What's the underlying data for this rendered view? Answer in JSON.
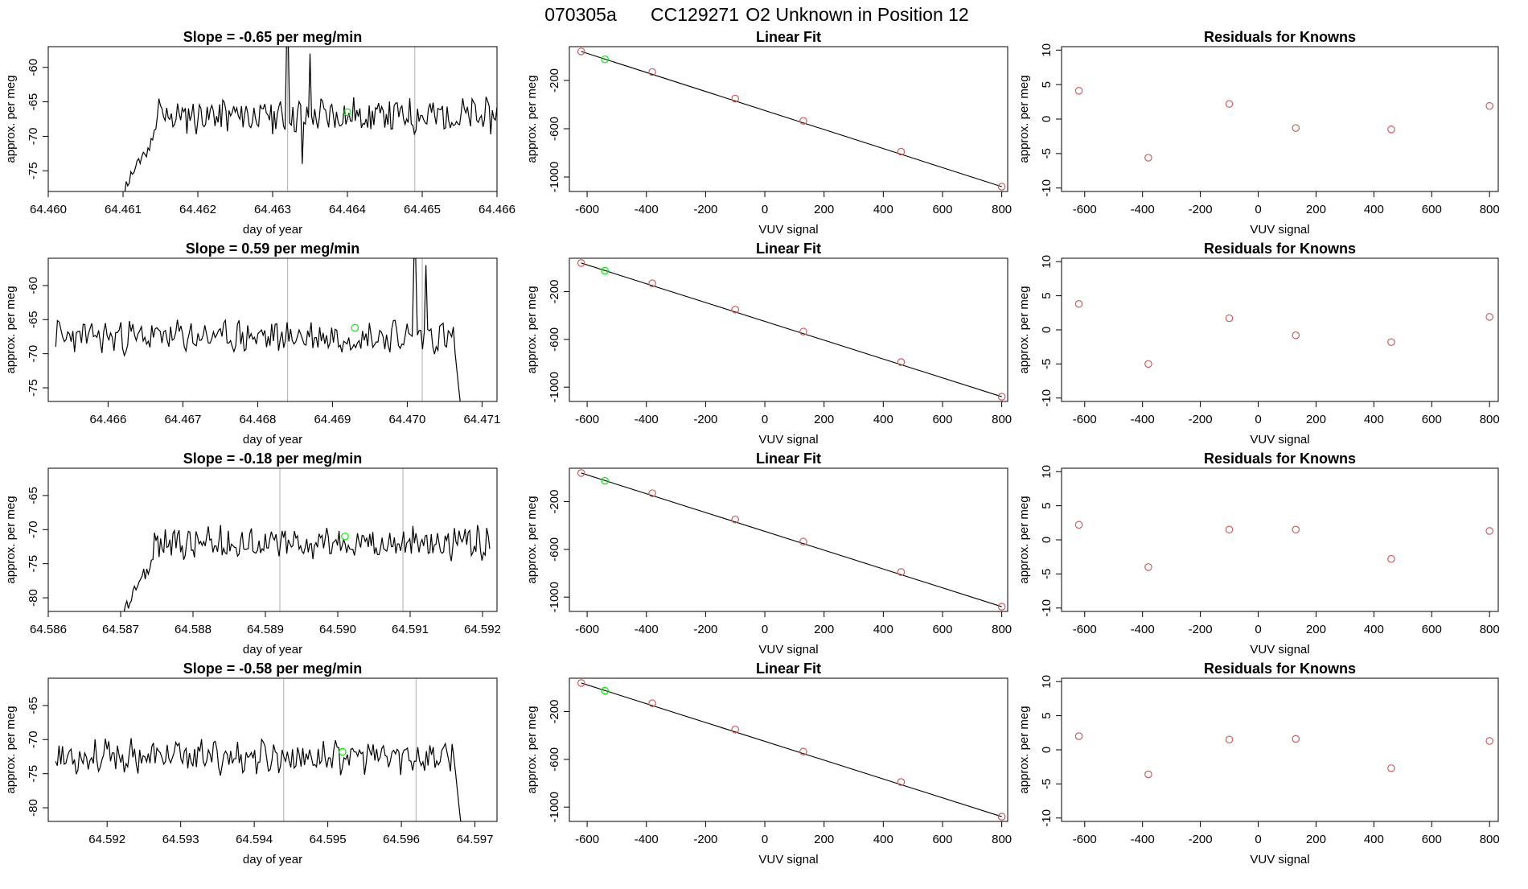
{
  "figure": {
    "title_parts": [
      "070305a",
      "CC129271",
      "O2 Unknown in Position  12"
    ],
    "colors": {
      "line": "#000000",
      "known": "#cd5c5c",
      "unknown": "#00ee00",
      "vline": "#bbbbbb"
    }
  },
  "chart_data": [
    {
      "type": "line",
      "row": 1,
      "title": "Slope =  -0.65  per meg/min",
      "xlabel": "day of year",
      "ylabel": "approx. per meg",
      "xlim": [
        64.46,
        64.466
      ],
      "ylim": [
        -78,
        -57
      ],
      "xticks": [
        "64.460",
        "64.461",
        "64.462",
        "64.463",
        "64.464",
        "64.465",
        "64.466"
      ],
      "yticks": [
        -75,
        -70,
        -65,
        -60
      ],
      "series": {
        "x_start": 64.461,
        "x_end": 64.466,
        "y_base": -67,
        "noise": 2.2,
        "ramp": true,
        "seed": 11,
        "spikes": [
          {
            "x": 64.4632,
            "y": -56
          },
          {
            "x": 64.4635,
            "y": -58
          },
          {
            "x": 64.4634,
            "y": -74
          }
        ]
      },
      "vlines": [
        64.4632,
        64.4649
      ],
      "unknown_point": {
        "x": 64.464,
        "y": -66.5
      }
    },
    {
      "type": "scatter",
      "row": 1,
      "title": "Linear Fit",
      "xlabel": "VUV signal",
      "ylabel": "approx. per meg",
      "xlim": [
        -660,
        820
      ],
      "ylim": [
        -1120,
        80
      ],
      "xticks": [
        -600,
        -400,
        -200,
        0,
        200,
        400,
        600,
        800
      ],
      "yticks": [
        -200,
        -600,
        -1000
      ],
      "fit": [
        [
          -620,
          40
        ],
        [
          800,
          -1080
        ]
      ],
      "known": [
        {
          "x": -620,
          "y": 40
        },
        {
          "x": -380,
          "y": -130
        },
        {
          "x": -100,
          "y": -350
        },
        {
          "x": 130,
          "y": -535
        },
        {
          "x": 460,
          "y": -790
        },
        {
          "x": 800,
          "y": -1080
        }
      ],
      "unknown": {
        "x": -540,
        "y": -25
      }
    },
    {
      "type": "scatter",
      "row": 1,
      "title": "Residuals for Knowns",
      "xlabel": "VUV signal",
      "ylabel": "approx. per meg",
      "xlim": [
        -680,
        830
      ],
      "ylim": [
        -10.5,
        10.5
      ],
      "xticks": [
        -600,
        -400,
        -200,
        0,
        200,
        400,
        600,
        800
      ],
      "yticks": [
        -10,
        -5,
        0,
        5,
        10
      ],
      "known": [
        {
          "x": -620,
          "y": 4.1
        },
        {
          "x": -380,
          "y": -5.6
        },
        {
          "x": -100,
          "y": 2.2
        },
        {
          "x": 130,
          "y": -1.3
        },
        {
          "x": 460,
          "y": -1.5
        },
        {
          "x": 800,
          "y": 1.9
        }
      ]
    },
    {
      "type": "line",
      "row": 2,
      "title": "Slope =  0.59  per meg/min",
      "xlabel": "day of year",
      "ylabel": "approx. per meg",
      "xlim": [
        64.4652,
        64.4712
      ],
      "ylim": [
        -77,
        -56
      ],
      "xticks": [
        "64.466",
        "64.467",
        "64.468",
        "64.469",
        "64.470",
        "64.471"
      ],
      "yticks": [
        -75,
        -70,
        -65,
        -60
      ],
      "series": {
        "x_start": 64.4653,
        "x_end": 64.4708,
        "y_base": -67.5,
        "noise": 2.0,
        "ramp": false,
        "drop": true,
        "seed": 23,
        "spikes": [
          {
            "x": 64.4701,
            "y": -56
          },
          {
            "x": 64.47025,
            "y": -57
          }
        ]
      },
      "vlines": [
        64.4684,
        64.4702
      ],
      "unknown_point": {
        "x": 64.4693,
        "y": -66.2
      }
    },
    {
      "type": "scatter",
      "row": 2,
      "title": "Linear Fit",
      "xlabel": "VUV signal",
      "ylabel": "approx. per meg",
      "xlim": [
        -660,
        820
      ],
      "ylim": [
        -1120,
        80
      ],
      "xticks": [
        -600,
        -400,
        -200,
        0,
        200,
        400,
        600,
        800
      ],
      "yticks": [
        -200,
        -600,
        -1000
      ],
      "fit": [
        [
          -620,
          40
        ],
        [
          800,
          -1080
        ]
      ],
      "known": [
        {
          "x": -620,
          "y": 40
        },
        {
          "x": -380,
          "y": -130
        },
        {
          "x": -100,
          "y": -350
        },
        {
          "x": 130,
          "y": -535
        },
        {
          "x": 460,
          "y": -790
        },
        {
          "x": 800,
          "y": -1080
        }
      ],
      "unknown": {
        "x": -540,
        "y": -25
      }
    },
    {
      "type": "scatter",
      "row": 2,
      "title": "Residuals for Knowns",
      "xlabel": "VUV signal",
      "ylabel": "approx. per meg",
      "xlim": [
        -680,
        830
      ],
      "ylim": [
        -10.5,
        10.5
      ],
      "xticks": [
        -600,
        -400,
        -200,
        0,
        200,
        400,
        600,
        800
      ],
      "yticks": [
        -10,
        -5,
        0,
        5,
        10
      ],
      "known": [
        {
          "x": -620,
          "y": 3.8
        },
        {
          "x": -380,
          "y": -5.0
        },
        {
          "x": -100,
          "y": 1.7
        },
        {
          "x": 130,
          "y": -0.8
        },
        {
          "x": 460,
          "y": -1.8
        },
        {
          "x": 800,
          "y": 1.9
        }
      ]
    },
    {
      "type": "line",
      "row": 3,
      "title": "Slope =  -0.18  per meg/min",
      "xlabel": "day of year",
      "ylabel": "approx. per meg",
      "xlim": [
        64.586,
        64.5922
      ],
      "ylim": [
        -82,
        -61
      ],
      "xticks": [
        "64.586",
        "64.587",
        "64.588",
        "64.589",
        "64.590",
        "64.591",
        "64.592"
      ],
      "yticks": [
        -80,
        -75,
        -70,
        -65
      ],
      "series": {
        "x_start": 64.587,
        "x_end": 64.5921,
        "y_base": -72,
        "noise": 2.0,
        "ramp": true,
        "seed": 37,
        "spikes": []
      },
      "vlines": [
        64.5892,
        64.5909
      ],
      "unknown_point": {
        "x": 64.5901,
        "y": -71
      }
    },
    {
      "type": "scatter",
      "row": 3,
      "title": "Linear Fit",
      "xlabel": "VUV signal",
      "ylabel": "approx. per meg",
      "xlim": [
        -660,
        820
      ],
      "ylim": [
        -1120,
        80
      ],
      "xticks": [
        -600,
        -400,
        -200,
        0,
        200,
        400,
        600,
        800
      ],
      "yticks": [
        -200,
        -600,
        -1000
      ],
      "fit": [
        [
          -620,
          40
        ],
        [
          800,
          -1080
        ]
      ],
      "known": [
        {
          "x": -620,
          "y": 40
        },
        {
          "x": -380,
          "y": -130
        },
        {
          "x": -100,
          "y": -350
        },
        {
          "x": 130,
          "y": -535
        },
        {
          "x": 460,
          "y": -790
        },
        {
          "x": 800,
          "y": -1080
        }
      ],
      "unknown": {
        "x": -540,
        "y": -25
      }
    },
    {
      "type": "scatter",
      "row": 3,
      "title": "Residuals for Knowns",
      "xlabel": "VUV signal",
      "ylabel": "approx. per meg",
      "xlim": [
        -680,
        830
      ],
      "ylim": [
        -10.5,
        10.5
      ],
      "xticks": [
        -600,
        -400,
        -200,
        0,
        200,
        400,
        600,
        800
      ],
      "yticks": [
        -10,
        -5,
        0,
        5,
        10
      ],
      "known": [
        {
          "x": -620,
          "y": 2.2
        },
        {
          "x": -380,
          "y": -4.0
        },
        {
          "x": -100,
          "y": 1.5
        },
        {
          "x": 130,
          "y": 1.5
        },
        {
          "x": 460,
          "y": -2.8
        },
        {
          "x": 800,
          "y": 1.3
        }
      ]
    },
    {
      "type": "line",
      "row": 4,
      "title": "Slope =  -0.58  per meg/min",
      "xlabel": "day of year",
      "ylabel": "approx. per meg",
      "xlim": [
        64.5912,
        64.5973
      ],
      "ylim": [
        -82,
        -61
      ],
      "xticks": [
        "64.592",
        "64.593",
        "64.594",
        "64.595",
        "64.596",
        "64.597"
      ],
      "yticks": [
        -80,
        -75,
        -70,
        -65
      ],
      "series": {
        "x_start": 64.5913,
        "x_end": 64.5969,
        "y_base": -72.5,
        "noise": 2.0,
        "ramp": false,
        "drop": true,
        "seed": 53,
        "spikes": []
      },
      "vlines": [
        64.5944,
        64.5962
      ],
      "unknown_point": {
        "x": 64.5952,
        "y": -71.8
      }
    },
    {
      "type": "scatter",
      "row": 4,
      "title": "Linear Fit",
      "xlabel": "VUV signal",
      "ylabel": "approx. per meg",
      "xlim": [
        -660,
        820
      ],
      "ylim": [
        -1120,
        80
      ],
      "xticks": [
        -600,
        -400,
        -200,
        0,
        200,
        400,
        600,
        800
      ],
      "yticks": [
        -200,
        -600,
        -1000
      ],
      "fit": [
        [
          -620,
          40
        ],
        [
          800,
          -1080
        ]
      ],
      "known": [
        {
          "x": -620,
          "y": 40
        },
        {
          "x": -380,
          "y": -130
        },
        {
          "x": -100,
          "y": -350
        },
        {
          "x": 130,
          "y": -535
        },
        {
          "x": 460,
          "y": -790
        },
        {
          "x": 800,
          "y": -1080
        }
      ],
      "unknown": {
        "x": -540,
        "y": -25
      }
    },
    {
      "type": "scatter",
      "row": 4,
      "title": "Residuals for Knowns",
      "xlabel": "VUV signal",
      "ylabel": "approx. per meg",
      "xlim": [
        -680,
        830
      ],
      "ylim": [
        -10.5,
        10.5
      ],
      "xticks": [
        -600,
        -400,
        -200,
        0,
        200,
        400,
        600,
        800
      ],
      "yticks": [
        -10,
        -5,
        0,
        5,
        10
      ],
      "known": [
        {
          "x": -620,
          "y": 2.0
        },
        {
          "x": -380,
          "y": -3.6
        },
        {
          "x": -100,
          "y": 1.5
        },
        {
          "x": 130,
          "y": 1.6
        },
        {
          "x": 460,
          "y": -2.7
        },
        {
          "x": 800,
          "y": 1.3
        }
      ]
    }
  ]
}
